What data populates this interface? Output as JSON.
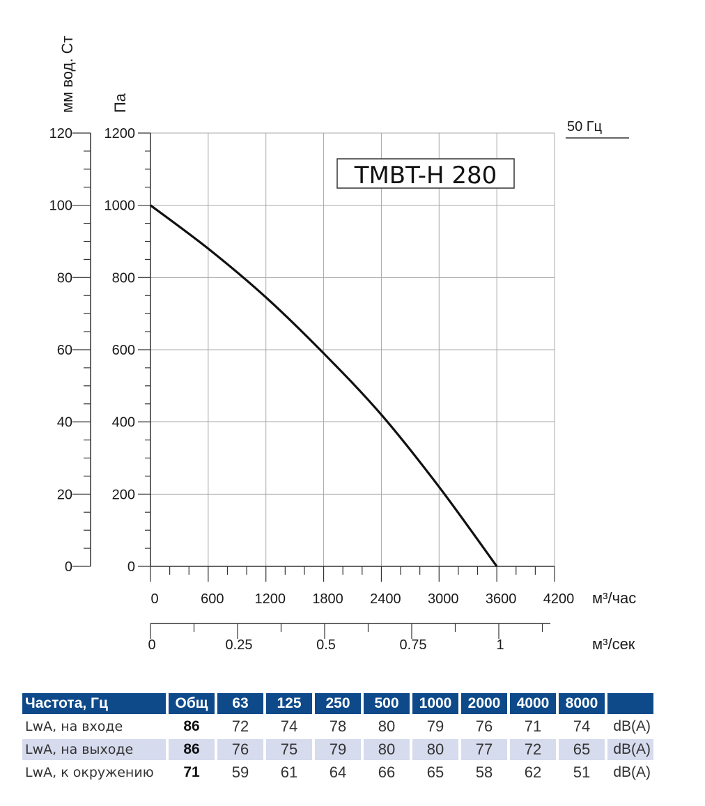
{
  "chart_data": {
    "type": "line",
    "series": [
      {
        "name": "50 Гц",
        "x": [
          0,
          600,
          1200,
          1800,
          2400,
          3000,
          3600
        ],
        "y": [
          1000,
          880,
          745,
          590,
          420,
          220,
          0
        ]
      }
    ],
    "model_label": "TMBT-H 280",
    "legend_label": "50 Гц",
    "y_left_label": "мм вод. Ст",
    "y_right_label": "Па",
    "y_left_ticks": [
      "120",
      "100",
      "80",
      "60",
      "40",
      "20",
      "0"
    ],
    "y_right_ticks": [
      "1200",
      "1000",
      "800",
      "600",
      "400",
      "200",
      "0"
    ],
    "x_ticks": [
      "0",
      "600",
      "1200",
      "1800",
      "2400",
      "3000",
      "3600",
      "4200"
    ],
    "x_label": "м³/час",
    "x2_ticks": [
      "0",
      "0.25",
      "0.5",
      "0.75",
      "1"
    ],
    "x2_label": "м³/сек",
    "xlim": [
      0,
      4200
    ],
    "ylim": [
      0,
      1200
    ],
    "grid": true
  },
  "table": {
    "header": [
      "Частота, Гц",
      "Общ",
      "63",
      "125",
      "250",
      "500",
      "1000",
      "2000",
      "4000",
      "8000",
      ""
    ],
    "rows": [
      {
        "label": "LwA, на входе",
        "total": "86",
        "values": [
          "72",
          "74",
          "78",
          "80",
          "79",
          "76",
          "71",
          "74"
        ],
        "unit": "dB(A)"
      },
      {
        "label": "LwA, на выходе",
        "total": "86",
        "values": [
          "76",
          "75",
          "79",
          "80",
          "80",
          "77",
          "72",
          "65"
        ],
        "unit": "dB(A)"
      },
      {
        "label": "LwA, к окружению",
        "total": "71",
        "values": [
          "59",
          "61",
          "64",
          "66",
          "65",
          "58",
          "62",
          "51"
        ],
        "unit": "dB(A)"
      }
    ]
  }
}
